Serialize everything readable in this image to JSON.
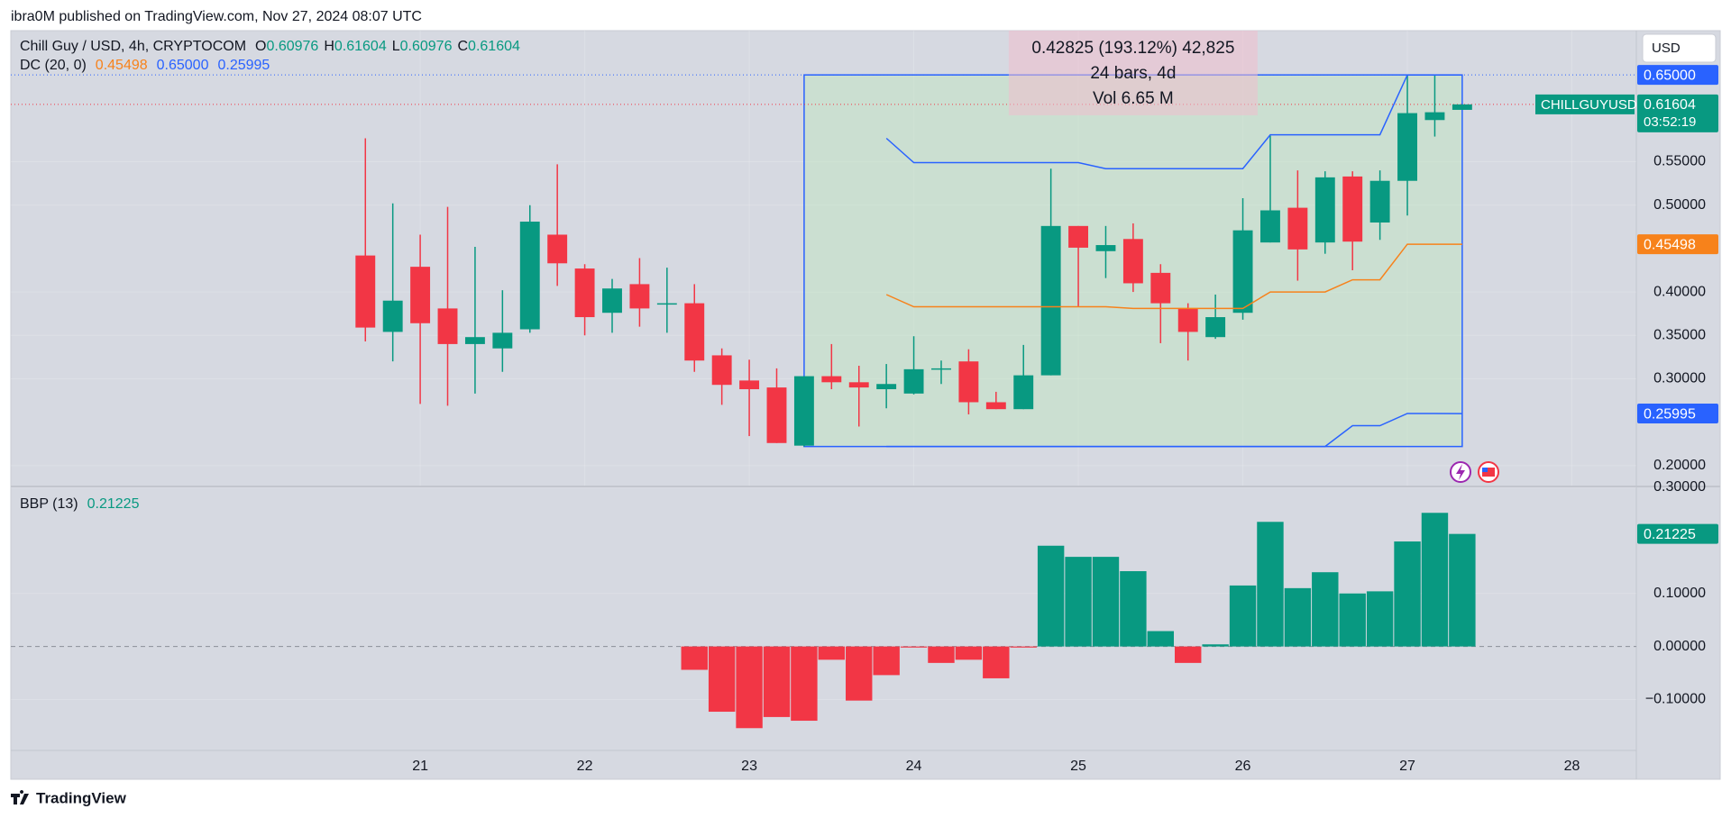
{
  "header": {
    "published": "ibra0M published on TradingView.com, Nov 27, 2024 08:07 UTC",
    "currency_button": "USD",
    "footer": "TradingView"
  },
  "chart_data": [
    {
      "type": "candlestick",
      "title": "Chill Guy / USD, 4h, CRYPTOCOM",
      "ohlc_legend": [
        {
          "key": "O",
          "label": "0.60976"
        },
        {
          "key": "H",
          "label": "0.61604"
        },
        {
          "key": "L",
          "label": "0.60976"
        },
        {
          "key": "C",
          "label": "0.61604"
        }
      ],
      "symbol_label": "CHILLGUYUSD",
      "last_price_label": "0.61604",
      "countdown": "03:52:19",
      "up_color": "#089981",
      "down_color": "#f23645",
      "open": [
        0.442,
        0.354,
        0.429,
        0.381,
        0.34,
        0.335,
        0.357,
        0.466,
        0.427,
        0.376,
        0.409,
        0.386,
        0.387,
        0.327,
        0.298,
        0.29,
        0.223,
        0.303,
        0.296,
        0.288,
        0.283,
        0.311,
        0.32,
        0.273,
        0.265,
        0.304,
        0.476,
        0.447,
        0.461,
        0.422,
        0.381,
        0.348,
        0.376,
        0.457,
        0.497,
        0.457,
        0.533,
        0.48,
        0.528,
        0.598,
        0.60976
      ],
      "high": [
        0.577,
        0.502,
        0.466,
        0.498,
        0.452,
        0.402,
        0.5,
        0.547,
        0.432,
        0.415,
        0.439,
        0.428,
        0.409,
        0.335,
        0.322,
        0.312,
        0.303,
        0.34,
        0.315,
        0.317,
        0.349,
        0.321,
        0.334,
        0.285,
        0.339,
        0.542,
        0.476,
        0.476,
        0.479,
        0.432,
        0.387,
        0.397,
        0.508,
        0.58,
        0.54,
        0.539,
        0.539,
        0.54,
        0.65,
        0.65,
        0.61604
      ],
      "low": [
        0.343,
        0.32,
        0.271,
        0.269,
        0.283,
        0.308,
        0.353,
        0.407,
        0.35,
        0.353,
        0.36,
        0.353,
        0.308,
        0.27,
        0.234,
        0.226,
        0.222,
        0.288,
        0.245,
        0.266,
        0.282,
        0.294,
        0.259,
        0.265,
        0.265,
        0.304,
        0.383,
        0.416,
        0.4,
        0.341,
        0.321,
        0.346,
        0.368,
        0.457,
        0.413,
        0.444,
        0.425,
        0.46,
        0.488,
        0.579,
        0.60976
      ],
      "close": [
        0.359,
        0.39,
        0.364,
        0.34,
        0.348,
        0.353,
        0.481,
        0.433,
        0.371,
        0.404,
        0.381,
        0.387,
        0.321,
        0.293,
        0.288,
        0.226,
        0.303,
        0.296,
        0.29,
        0.294,
        0.311,
        0.312,
        0.273,
        0.265,
        0.304,
        0.476,
        0.451,
        0.454,
        0.41,
        0.387,
        0.354,
        0.371,
        0.471,
        0.494,
        0.449,
        0.532,
        0.458,
        0.528,
        0.606,
        0.607,
        0.61604
      ],
      "overlay": {
        "name": "DC (20, 0)",
        "series": [
          {
            "color": "#f7821b",
            "last_value_label": "0.45498",
            "values": [
              null,
              null,
              null,
              null,
              null,
              null,
              null,
              null,
              null,
              null,
              null,
              null,
              null,
              null,
              null,
              null,
              null,
              null,
              null,
              0.397,
              0.383,
              0.383,
              0.383,
              0.383,
              0.383,
              0.383,
              0.383,
              0.383,
              0.381,
              0.381,
              0.381,
              0.381,
              0.381,
              0.4,
              0.4,
              0.4,
              0.414,
              0.414,
              0.455,
              0.455,
              0.45498
            ]
          },
          {
            "color": "#2962ff",
            "last_value_label": "0.65000",
            "values": [
              null,
              null,
              null,
              null,
              null,
              null,
              null,
              null,
              null,
              null,
              null,
              null,
              null,
              null,
              null,
              null,
              null,
              null,
              null,
              0.577,
              0.549,
              0.549,
              0.549,
              0.549,
              0.549,
              0.549,
              0.549,
              0.542,
              0.542,
              0.542,
              0.542,
              0.542,
              0.542,
              0.581,
              0.581,
              0.581,
              0.581,
              0.581,
              0.65,
              0.65,
              0.65
            ]
          },
          {
            "color": "#2962ff",
            "last_value_label": "0.25995",
            "values": [
              null,
              null,
              null,
              null,
              null,
              null,
              null,
              null,
              null,
              null,
              null,
              null,
              null,
              null,
              null,
              null,
              null,
              null,
              null,
              0.222,
              0.222,
              0.222,
              0.222,
              0.222,
              0.222,
              0.222,
              0.222,
              0.222,
              0.222,
              0.222,
              0.222,
              0.222,
              0.222,
              0.222,
              0.222,
              0.222,
              0.246,
              0.246,
              0.26,
              0.26,
              0.25995
            ]
          }
        ]
      },
      "measure": {
        "text": "0.42825 (193.12%) 42,825",
        "bars": "24 bars, 4d",
        "volume": "Vol 6.65 M",
        "from_index": 16,
        "to_index": 40
      },
      "xlim": [
        -12.93,
        46.35
      ],
      "xticks": [
        {
          "value": 2,
          "label": "21"
        },
        {
          "value": 8,
          "label": "22"
        },
        {
          "value": 14,
          "label": "23"
        },
        {
          "value": 20,
          "label": "24"
        },
        {
          "value": 26,
          "label": "25"
        },
        {
          "value": 32,
          "label": "26"
        },
        {
          "value": 38,
          "label": "27"
        },
        {
          "value": 44,
          "label": "28"
        }
      ],
      "ylim": [
        0.177,
        0.701
      ],
      "yticks": [
        {
          "value": 0.55,
          "label": "0.55000"
        },
        {
          "value": 0.5,
          "label": "0.50000"
        },
        {
          "value": 0.4,
          "label": "0.40000"
        },
        {
          "value": 0.35,
          "label": "0.35000"
        },
        {
          "value": 0.3,
          "label": "0.30000"
        },
        {
          "value": 0.2,
          "label": "0.20000"
        }
      ],
      "grid": true
    },
    {
      "type": "bar",
      "title": "BBP (13)",
      "last_value_label": "0.21225",
      "up_color": "#089981",
      "down_color": "#f23645",
      "values": [
        null,
        null,
        null,
        null,
        null,
        null,
        null,
        null,
        null,
        null,
        null,
        null,
        -0.044,
        -0.123,
        -0.154,
        -0.133,
        -0.14,
        -0.025,
        -0.102,
        -0.054,
        -0.002,
        -0.031,
        -0.025,
        -0.06,
        -0.002,
        0.19,
        0.169,
        0.169,
        0.142,
        0.029,
        -0.031,
        0.004,
        0.115,
        0.235,
        0.11,
        0.14,
        0.1,
        0.104,
        0.198,
        0.252,
        0.21225
      ],
      "ylim": [
        -0.196,
        0.3
      ],
      "yticks": [
        {
          "value": 0.3,
          "label": "0.30000"
        },
        {
          "value": 0.1,
          "label": "0.10000"
        },
        {
          "value": 0,
          "label": "0.00000"
        },
        {
          "value": -0.1,
          "label": "−0.10000"
        }
      ],
      "grid": true
    }
  ]
}
